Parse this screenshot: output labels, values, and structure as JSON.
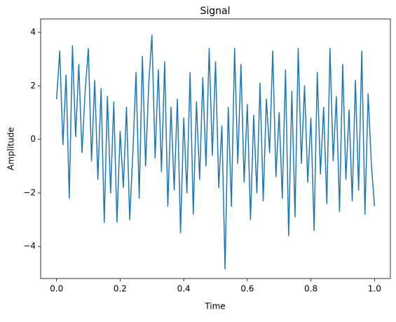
{
  "chart_data": {
    "type": "line",
    "title": "Signal",
    "xlabel": "Time",
    "ylabel": "Amplitude",
    "x": [
      0,
      0.01,
      0.02,
      0.03,
      0.04,
      0.05,
      0.06,
      0.07,
      0.08,
      0.09,
      0.1,
      0.11,
      0.12,
      0.13,
      0.14,
      0.15,
      0.16,
      0.17,
      0.18,
      0.19,
      0.2,
      0.21,
      0.22,
      0.23,
      0.24,
      0.25,
      0.26,
      0.27,
      0.28,
      0.29,
      0.3,
      0.31,
      0.32,
      0.33,
      0.34,
      0.35,
      0.36,
      0.37,
      0.38,
      0.39,
      0.4,
      0.41,
      0.42,
      0.43,
      0.44,
      0.45,
      0.46,
      0.47,
      0.48,
      0.49,
      0.5,
      0.51,
      0.52,
      0.53,
      0.54,
      0.55,
      0.56,
      0.57,
      0.58,
      0.59,
      0.6,
      0.61,
      0.62,
      0.63,
      0.64,
      0.65,
      0.66,
      0.67,
      0.68,
      0.69,
      0.7,
      0.71,
      0.72,
      0.73,
      0.74,
      0.75,
      0.76,
      0.77,
      0.78,
      0.79,
      0.8,
      0.81,
      0.82,
      0.83,
      0.84,
      0.85,
      0.86,
      0.87,
      0.88,
      0.89,
      0.9,
      0.91,
      0.92,
      0.93,
      0.94,
      0.95,
      0.96,
      0.97,
      0.98,
      0.99,
      1
    ],
    "series": [
      {
        "color": "#1f77b4",
        "values": [
          1.5,
          3.3,
          -0.2,
          2.4,
          -2.2,
          3.5,
          0.1,
          2.8,
          -0.5,
          1.8,
          3.4,
          -0.8,
          2.2,
          -1.5,
          1.9,
          -3.1,
          1.6,
          -2.0,
          1.4,
          -3.1,
          0.3,
          -1.8,
          1.2,
          -3.0,
          -0.5,
          2.5,
          -2.2,
          3.1,
          -1.0,
          2.1,
          3.9,
          -0.7,
          2.6,
          -1.2,
          2.9,
          -2.5,
          1.2,
          -1.9,
          1.5,
          -3.5,
          0.8,
          -2.0,
          2.5,
          -2.8,
          1.4,
          -1.5,
          2.3,
          -1.0,
          3.4,
          -0.6,
          2.9,
          -1.8,
          0.5,
          -4.85,
          1.2,
          -2.5,
          3.4,
          -0.9,
          2.8,
          -1.6,
          1.3,
          -3.0,
          0.9,
          -2.0,
          2.1,
          -2.3,
          1.5,
          -0.5,
          3.3,
          -1.4,
          1.0,
          -2.2,
          2.6,
          -3.6,
          1.8,
          -2.9,
          3.4,
          -0.9,
          2.0,
          -1.6,
          0.8,
          -3.4,
          2.5,
          -1.3,
          1.2,
          -2.4,
          3.4,
          -0.8,
          1.6,
          -2.7,
          2.8,
          -1.5,
          1.1,
          -2.3,
          2.2,
          -1.9,
          3.3,
          -2.8,
          1.7,
          -0.9,
          -2.5
        ]
      }
    ],
    "xlim": [
      -0.05,
      1.05
    ],
    "ylim": [
      -5.2,
      4.5
    ],
    "xticks": [
      {
        "value": 0,
        "label": "0.0"
      },
      0.2,
      0.4,
      0.6,
      0.8,
      {
        "value": 1,
        "label": "1.0"
      }
    ],
    "yticks": [
      {
        "value": -4,
        "label": "−4"
      },
      {
        "value": -2,
        "label": "−2"
      },
      0,
      2,
      4
    ]
  }
}
